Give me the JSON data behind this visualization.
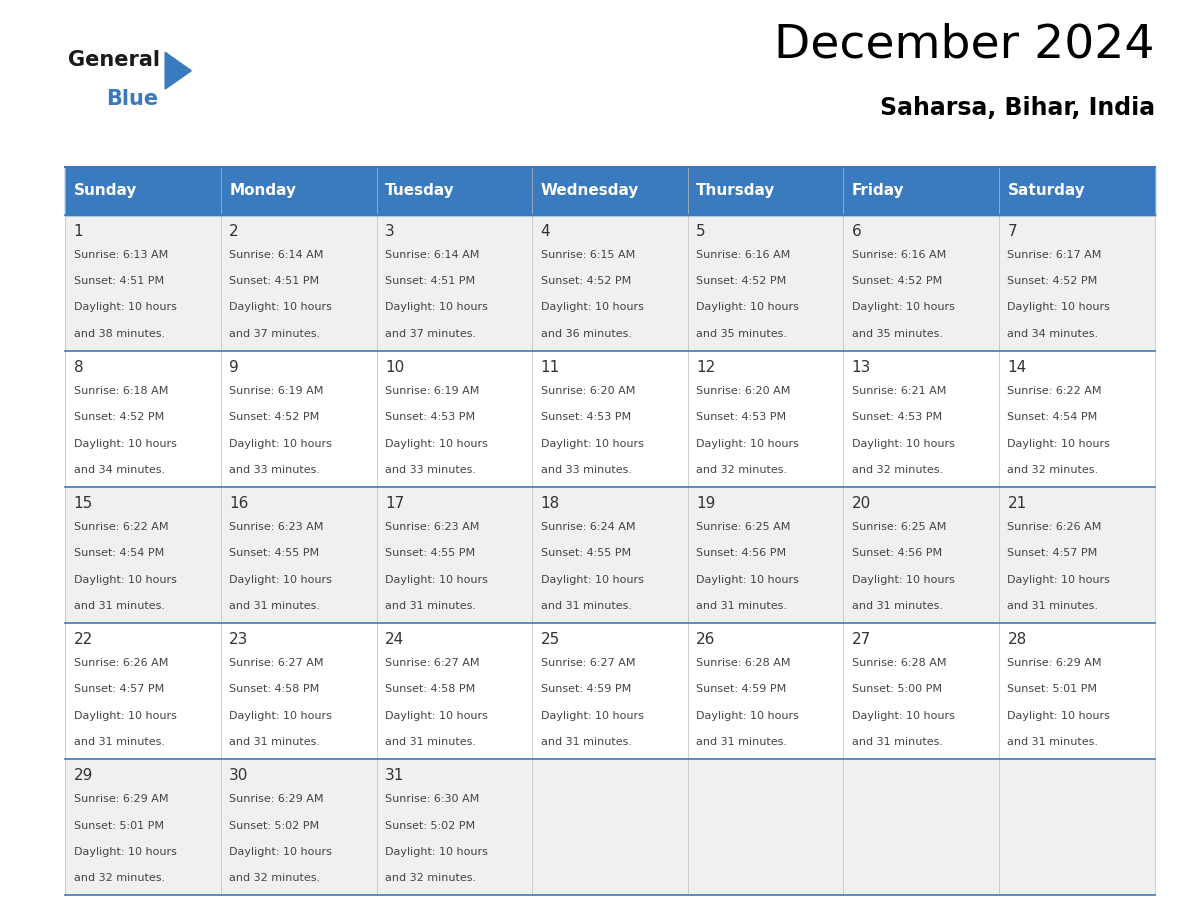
{
  "title": "December 2024",
  "subtitle": "Saharsa, Bihar, India",
  "header_bg": "#3a7abf",
  "header_text": "#ffffff",
  "odd_row_bg": "#f0f0f0",
  "even_row_bg": "#ffffff",
  "border_color": "#3a7abf",
  "days_of_week": [
    "Sunday",
    "Monday",
    "Tuesday",
    "Wednesday",
    "Thursday",
    "Friday",
    "Saturday"
  ],
  "calendar": [
    [
      {
        "day": 1,
        "sunrise": "6:13 AM",
        "sunset": "4:51 PM",
        "daylight_hours": 10,
        "daylight_minutes": 38
      },
      {
        "day": 2,
        "sunrise": "6:14 AM",
        "sunset": "4:51 PM",
        "daylight_hours": 10,
        "daylight_minutes": 37
      },
      {
        "day": 3,
        "sunrise": "6:14 AM",
        "sunset": "4:51 PM",
        "daylight_hours": 10,
        "daylight_minutes": 37
      },
      {
        "day": 4,
        "sunrise": "6:15 AM",
        "sunset": "4:52 PM",
        "daylight_hours": 10,
        "daylight_minutes": 36
      },
      {
        "day": 5,
        "sunrise": "6:16 AM",
        "sunset": "4:52 PM",
        "daylight_hours": 10,
        "daylight_minutes": 35
      },
      {
        "day": 6,
        "sunrise": "6:16 AM",
        "sunset": "4:52 PM",
        "daylight_hours": 10,
        "daylight_minutes": 35
      },
      {
        "day": 7,
        "sunrise": "6:17 AM",
        "sunset": "4:52 PM",
        "daylight_hours": 10,
        "daylight_minutes": 34
      }
    ],
    [
      {
        "day": 8,
        "sunrise": "6:18 AM",
        "sunset": "4:52 PM",
        "daylight_hours": 10,
        "daylight_minutes": 34
      },
      {
        "day": 9,
        "sunrise": "6:19 AM",
        "sunset": "4:52 PM",
        "daylight_hours": 10,
        "daylight_minutes": 33
      },
      {
        "day": 10,
        "sunrise": "6:19 AM",
        "sunset": "4:53 PM",
        "daylight_hours": 10,
        "daylight_minutes": 33
      },
      {
        "day": 11,
        "sunrise": "6:20 AM",
        "sunset": "4:53 PM",
        "daylight_hours": 10,
        "daylight_minutes": 33
      },
      {
        "day": 12,
        "sunrise": "6:20 AM",
        "sunset": "4:53 PM",
        "daylight_hours": 10,
        "daylight_minutes": 32
      },
      {
        "day": 13,
        "sunrise": "6:21 AM",
        "sunset": "4:53 PM",
        "daylight_hours": 10,
        "daylight_minutes": 32
      },
      {
        "day": 14,
        "sunrise": "6:22 AM",
        "sunset": "4:54 PM",
        "daylight_hours": 10,
        "daylight_minutes": 32
      }
    ],
    [
      {
        "day": 15,
        "sunrise": "6:22 AM",
        "sunset": "4:54 PM",
        "daylight_hours": 10,
        "daylight_minutes": 31
      },
      {
        "day": 16,
        "sunrise": "6:23 AM",
        "sunset": "4:55 PM",
        "daylight_hours": 10,
        "daylight_minutes": 31
      },
      {
        "day": 17,
        "sunrise": "6:23 AM",
        "sunset": "4:55 PM",
        "daylight_hours": 10,
        "daylight_minutes": 31
      },
      {
        "day": 18,
        "sunrise": "6:24 AM",
        "sunset": "4:55 PM",
        "daylight_hours": 10,
        "daylight_minutes": 31
      },
      {
        "day": 19,
        "sunrise": "6:25 AM",
        "sunset": "4:56 PM",
        "daylight_hours": 10,
        "daylight_minutes": 31
      },
      {
        "day": 20,
        "sunrise": "6:25 AM",
        "sunset": "4:56 PM",
        "daylight_hours": 10,
        "daylight_minutes": 31
      },
      {
        "day": 21,
        "sunrise": "6:26 AM",
        "sunset": "4:57 PM",
        "daylight_hours": 10,
        "daylight_minutes": 31
      }
    ],
    [
      {
        "day": 22,
        "sunrise": "6:26 AM",
        "sunset": "4:57 PM",
        "daylight_hours": 10,
        "daylight_minutes": 31
      },
      {
        "day": 23,
        "sunrise": "6:27 AM",
        "sunset": "4:58 PM",
        "daylight_hours": 10,
        "daylight_minutes": 31
      },
      {
        "day": 24,
        "sunrise": "6:27 AM",
        "sunset": "4:58 PM",
        "daylight_hours": 10,
        "daylight_minutes": 31
      },
      {
        "day": 25,
        "sunrise": "6:27 AM",
        "sunset": "4:59 PM",
        "daylight_hours": 10,
        "daylight_minutes": 31
      },
      {
        "day": 26,
        "sunrise": "6:28 AM",
        "sunset": "4:59 PM",
        "daylight_hours": 10,
        "daylight_minutes": 31
      },
      {
        "day": 27,
        "sunrise": "6:28 AM",
        "sunset": "5:00 PM",
        "daylight_hours": 10,
        "daylight_minutes": 31
      },
      {
        "day": 28,
        "sunrise": "6:29 AM",
        "sunset": "5:01 PM",
        "daylight_hours": 10,
        "daylight_minutes": 31
      }
    ],
    [
      {
        "day": 29,
        "sunrise": "6:29 AM",
        "sunset": "5:01 PM",
        "daylight_hours": 10,
        "daylight_minutes": 32
      },
      {
        "day": 30,
        "sunrise": "6:29 AM",
        "sunset": "5:02 PM",
        "daylight_hours": 10,
        "daylight_minutes": 32
      },
      {
        "day": 31,
        "sunrise": "6:30 AM",
        "sunset": "5:02 PM",
        "daylight_hours": 10,
        "daylight_minutes": 32
      },
      null,
      null,
      null,
      null
    ]
  ],
  "num_cols": 7,
  "num_rows": 5,
  "logo_general_color": "#1a1a1a",
  "logo_blue_color": "#3a7abf",
  "cell_text_color": "#444444",
  "day_num_color": "#333333"
}
